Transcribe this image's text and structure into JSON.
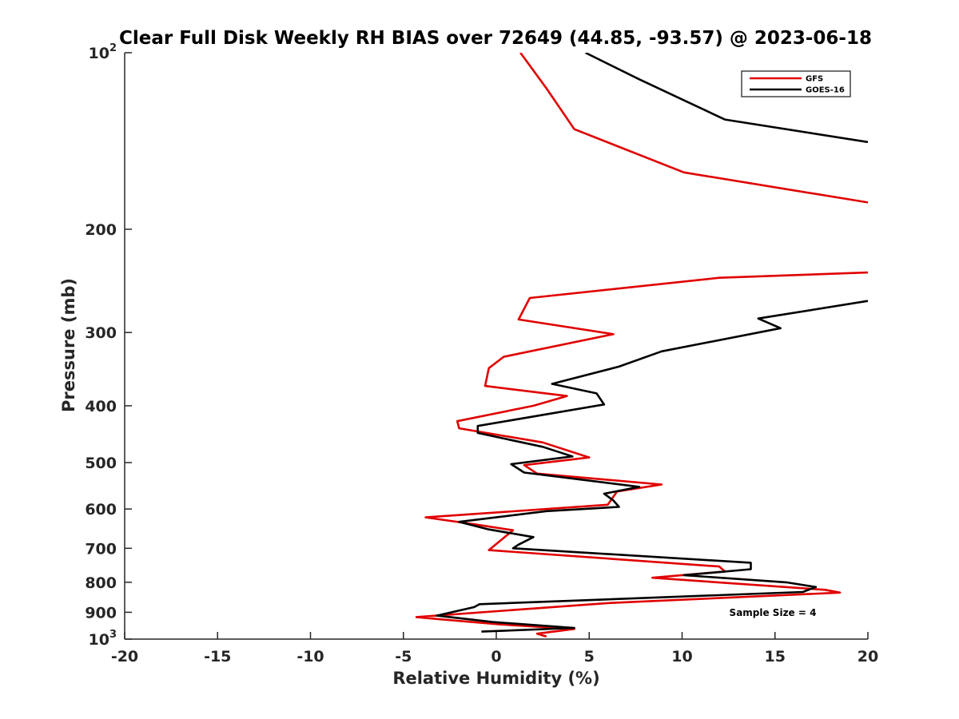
{
  "chart_data": {
    "type": "line",
    "title": "Clear Full Disk Weekly RH BIAS over 72649 (44.85, -93.57) @ 2023-06-18",
    "xlabel": "Relative Humidity (%)",
    "ylabel": "Pressure (mb)",
    "xlim": [
      -20,
      20
    ],
    "ylim": [
      100,
      1000
    ],
    "yscale": "log",
    "y_reversed": true,
    "x_ticks": [
      "-20",
      "-15",
      "-10",
      "-5",
      "0",
      "5",
      "10",
      "15",
      "20"
    ],
    "y_tick_values": [
      100,
      200,
      300,
      400,
      500,
      600,
      700,
      800,
      900,
      1000
    ],
    "y_tick_labels": [
      {
        "base": "10",
        "exp": "2"
      },
      {
        "base": "200",
        "exp": ""
      },
      {
        "base": "300",
        "exp": ""
      },
      {
        "base": "400",
        "exp": ""
      },
      {
        "base": "500",
        "exp": ""
      },
      {
        "base": "600",
        "exp": ""
      },
      {
        "base": "700",
        "exp": ""
      },
      {
        "base": "800",
        "exp": ""
      },
      {
        "base": "900",
        "exp": ""
      },
      {
        "base": "10",
        "exp": "3"
      }
    ],
    "grid": false,
    "legend_position": "top-right",
    "annotation": "Sample Size = 4",
    "series": [
      {
        "name": "GFS",
        "color": "#e00000",
        "points": [
          [
            1.3,
            100
          ],
          [
            2.7,
            115
          ],
          [
            4.2,
            135
          ],
          [
            10.1,
            160
          ],
          [
            20,
            180
          ],
          [
            null,
            null
          ],
          [
            20,
            237
          ],
          [
            12.0,
            242
          ],
          [
            1.8,
            262
          ],
          [
            1.2,
            285
          ],
          [
            6.3,
            302
          ],
          [
            0.4,
            330
          ],
          [
            -0.4,
            345
          ],
          [
            -0.6,
            370
          ],
          [
            3.8,
            385
          ],
          [
            2.0,
            400
          ],
          [
            -2.1,
            425
          ],
          [
            -2.0,
            437
          ],
          [
            2.5,
            462
          ],
          [
            5.0,
            490
          ],
          [
            1.5,
            505
          ],
          [
            2.2,
            522
          ],
          [
            8.9,
            545
          ],
          [
            6.5,
            560
          ],
          [
            6.0,
            590
          ],
          [
            -3.8,
            620
          ],
          [
            -1.2,
            637
          ],
          [
            0.9,
            652
          ],
          [
            -0.4,
            705
          ],
          [
            12.0,
            752
          ],
          [
            12.3,
            767
          ],
          [
            8.4,
            786
          ],
          [
            17.7,
            824
          ],
          [
            18.5,
            833
          ],
          [
            6.0,
            868
          ],
          [
            -4.3,
            917
          ],
          [
            -3.2,
            924
          ],
          [
            0.2,
            944
          ],
          [
            4.2,
            961
          ],
          [
            2.2,
            979
          ],
          [
            2.7,
            990
          ]
        ]
      },
      {
        "name": "GOES-16",
        "color": "#000000",
        "points": [
          [
            4.8,
            100
          ],
          [
            7.7,
            111
          ],
          [
            12.3,
            130
          ],
          [
            20,
            142
          ],
          [
            null,
            null
          ],
          [
            20,
            265
          ],
          [
            14.1,
            284
          ],
          [
            15.3,
            295
          ],
          [
            8.9,
            323
          ],
          [
            6.6,
            343
          ],
          [
            3.0,
            367
          ],
          [
            5.4,
            381
          ],
          [
            5.8,
            398
          ],
          [
            -1.0,
            433
          ],
          [
            -1.0,
            445
          ],
          [
            2.5,
            470
          ],
          [
            4.1,
            488
          ],
          [
            0.8,
            503
          ],
          [
            1.5,
            520
          ],
          [
            7.7,
            550
          ],
          [
            5.8,
            565
          ],
          [
            6.3,
            580
          ],
          [
            6.6,
            595
          ],
          [
            2.7,
            605
          ],
          [
            -2.0,
            631
          ],
          [
            -0.4,
            650
          ],
          [
            2.0,
            670
          ],
          [
            1.2,
            690
          ],
          [
            0.9,
            700
          ],
          [
            13.7,
            741
          ],
          [
            13.7,
            760
          ],
          [
            10.1,
            778
          ],
          [
            15.6,
            800
          ],
          [
            17.2,
            815
          ],
          [
            16.5,
            831
          ],
          [
            -0.9,
            872
          ],
          [
            -1.2,
            882
          ],
          [
            -3.2,
            912
          ],
          [
            -0.2,
            935
          ],
          [
            4.2,
            957
          ],
          [
            -0.8,
            971
          ]
        ]
      }
    ]
  }
}
